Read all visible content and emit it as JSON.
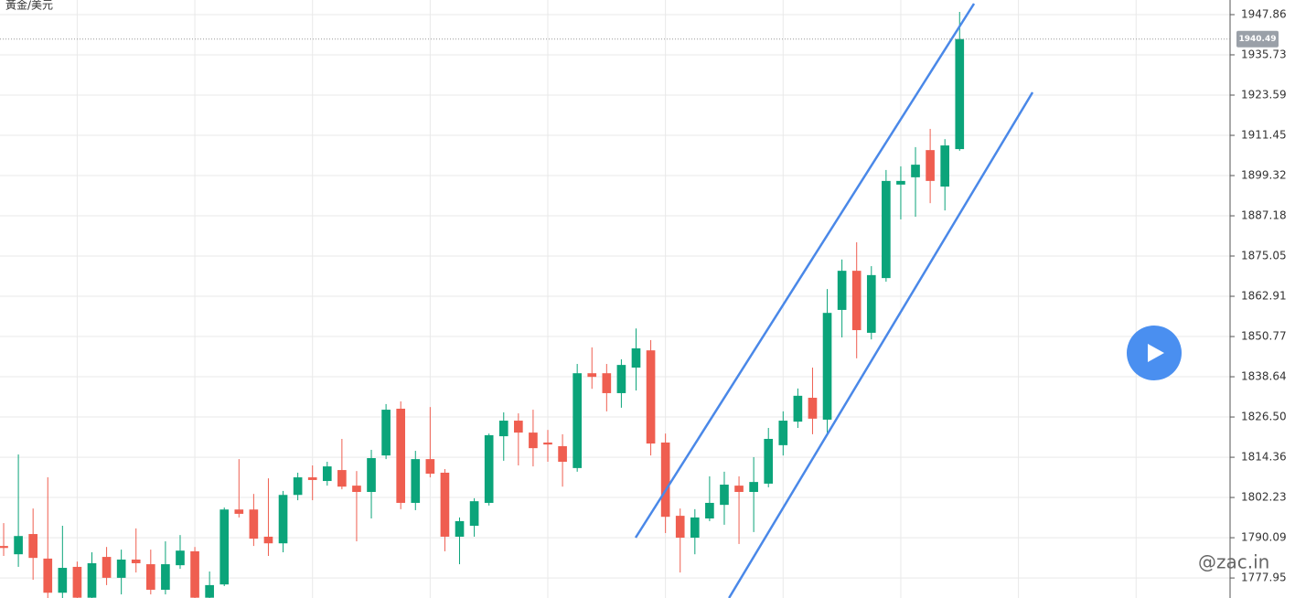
{
  "chart_data": {
    "type": "candlestick",
    "title": "黃金/美元",
    "watermark": "@zac.in",
    "ylim": [
      1771.91,
      1952.27
    ],
    "xlim": [
      -0.249,
      83.39
    ],
    "yticks": [
      1947.86,
      1935.73,
      1923.59,
      1911.45,
      1899.32,
      1887.18,
      1875.05,
      1862.91,
      1850.77,
      1838.64,
      {
        "value": 1826.5,
        "label": "1826.50"
      },
      1814.36,
      1802.23,
      1790.09,
      1777.95
    ],
    "last_price": 1940.49,
    "grid": true,
    "up_color": "#0ba47a",
    "down_color": "#ef5e50",
    "open": [
      1787.6,
      1785.1,
      1791.2,
      1783.8,
      1773.5,
      1781.3,
      1772.0,
      1784.3,
      1778.0,
      1783.5,
      1782.1,
      1774.4,
      1781.8,
      1786.0,
      1772.0,
      1776.0,
      1798.6,
      1798.6,
      1790.4,
      1788.4,
      1803.0,
      1808.3,
      1807.2,
      1810.5,
      1805.8,
      1803.9,
      1814.9,
      1829.0,
      1800.6,
      1813.8,
      1809.7,
      1790.4,
      1793.7,
      1800.6,
      1820.7,
      1825.4,
      1821.8,
      1818.8,
      1817.7,
      1811.1,
      1839.7,
      1839.7,
      1833.7,
      1841.4,
      1846.6,
      1818.8,
      1796.7,
      1790.1,
      1795.9,
      1800.0,
      1805.8,
      1803.9,
      1806.4,
      1818.0,
      1825.1,
      1832.3,
      1825.7,
      1858.8,
      1870.6,
      1851.9,
      1868.4,
      1896.6,
      1898.8,
      1907.0,
      1896.0,
      1907.3
    ],
    "high": [
      1794.5,
      1815.2,
      1798.9,
      1808.3,
      1793.7,
      1782.9,
      1785.7,
      1787.3,
      1786.5,
      1792.9,
      1786.5,
      1789.0,
      1790.9,
      1787.3,
      1779.9,
      1799.2,
      1813.8,
      1803.3,
      1808.0,
      1804.2,
      1809.7,
      1811.9,
      1813.0,
      1819.9,
      1810.2,
      1816.6,
      1830.4,
      1831.2,
      1816.3,
      1829.5,
      1810.8,
      1796.2,
      1802.0,
      1821.5,
      1827.9,
      1827.6,
      1828.7,
      1822.6,
      1821.3,
      1842.5,
      1847.5,
      1842.5,
      1843.9,
      1853.2,
      1849.7,
      1821.5,
      1798.9,
      1798.7,
      1808.6,
      1810.0,
      1808.6,
      1814.4,
      1823.2,
      1828.2,
      1835.1,
      1841.4,
      1865.1,
      1874.0,
      1879.2,
      1872.0,
      1901.0,
      1902.1,
      1907.9,
      1913.4,
      1910.3,
      1948.7
    ],
    "low": [
      1784.6,
      1781.3,
      1777.4,
      1771.91,
      1771.91,
      1771.91,
      1771.91,
      1775.8,
      1773.0,
      1779.6,
      1773.0,
      1773.0,
      1780.7,
      1771.91,
      1771.91,
      1775.5,
      1796.2,
      1787.6,
      1784.6,
      1785.7,
      1801.4,
      1801.4,
      1805.8,
      1804.7,
      1789.0,
      1795.9,
      1813.8,
      1798.7,
      1798.4,
      1808.3,
      1786.0,
      1782.1,
      1790.4,
      1799.8,
      1813.3,
      1811.9,
      1811.6,
      1813.0,
      1805.5,
      1810.0,
      1835.0,
      1828.2,
      1829.3,
      1834.5,
      1814.9,
      1791.5,
      1779.6,
      1785.1,
      1795.1,
      1794.0,
      1788.2,
      1791.8,
      1805.3,
      1814.9,
      1823.2,
      1821.3,
      1821.5,
      1850.5,
      1844.2,
      1849.9,
      1867.3,
      1886.1,
      1886.9,
      1891.0,
      1888.8,
      1906.8
    ],
    "close": [
      1787.0,
      1790.6,
      1784.0,
      1773.5,
      1781.0,
      1772.0,
      1782.4,
      1778.0,
      1783.5,
      1782.4,
      1774.4,
      1782.1,
      1786.2,
      1772.0,
      1775.8,
      1798.6,
      1797.3,
      1789.8,
      1788.4,
      1803.0,
      1808.3,
      1807.5,
      1811.6,
      1805.5,
      1803.9,
      1814.1,
      1828.7,
      1800.6,
      1813.8,
      1809.4,
      1790.4,
      1795.1,
      1801.1,
      1821.0,
      1825.4,
      1821.8,
      1817.1,
      1818.2,
      1813.0,
      1839.7,
      1838.6,
      1833.7,
      1842.2,
      1847.2,
      1818.5,
      1796.4,
      1790.1,
      1796.2,
      1800.6,
      1806.1,
      1803.9,
      1806.9,
      1819.9,
      1825.4,
      1832.9,
      1826.0,
      1857.9,
      1870.6,
      1852.7,
      1869.3,
      1897.7,
      1897.7,
      1902.6,
      1897.7,
      1908.4,
      1940.49
    ],
    "trendlines": [
      {
        "color": "#4a88e8",
        "x": [
          42.97,
          65.98
        ],
        "y": [
          1790.11,
          1951.17
        ]
      },
      {
        "color": "#4a88e8",
        "x": [
          49.32,
          69.96
        ],
        "y": [
          1771.91,
          1924.42
        ]
      }
    ]
  }
}
